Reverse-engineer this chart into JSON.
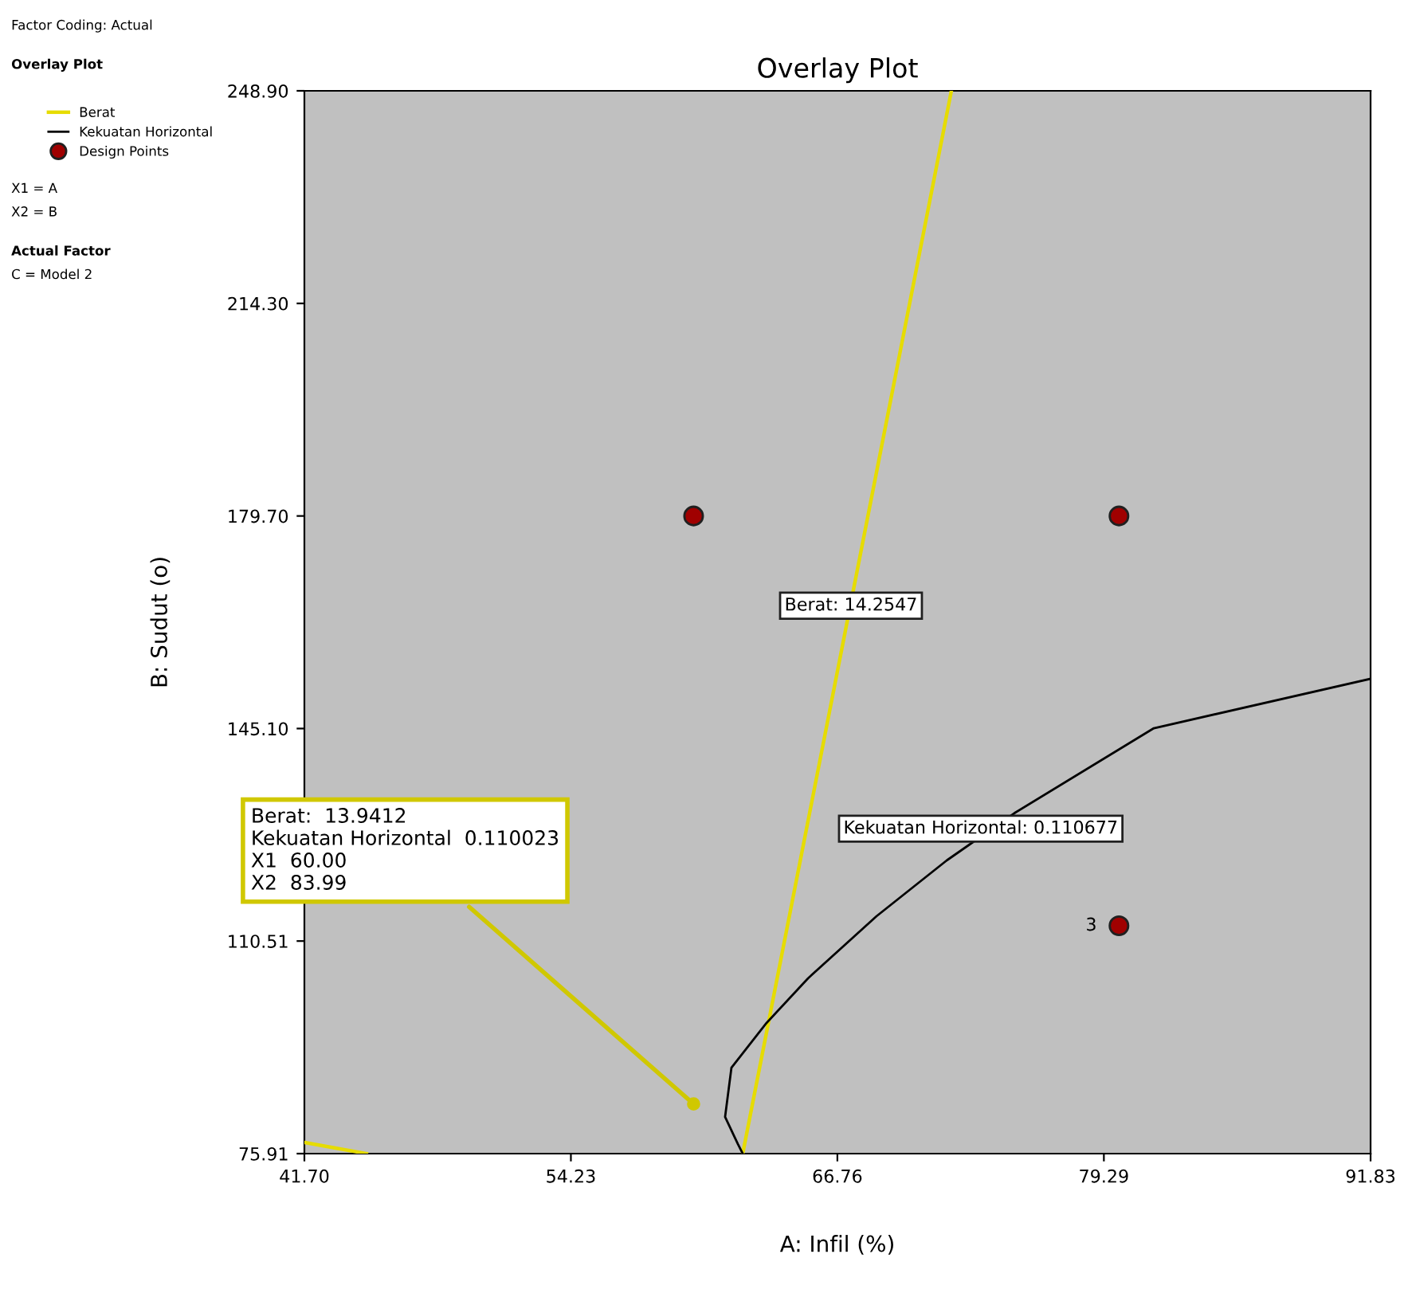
{
  "chart_data": {
    "type": "line",
    "title": "Overlay Plot",
    "xlabel": "A: Infil (%)",
    "ylabel": "B: Sudut (o)",
    "xlim": [
      41.7,
      91.83
    ],
    "ylim": [
      75.91,
      248.9
    ],
    "xticks": [
      {
        "value": 41.7,
        "label": "41.70"
      },
      {
        "value": 54.23,
        "label": "54.23"
      },
      {
        "value": 66.76,
        "label": "66.76"
      },
      {
        "value": 79.29,
        "label": "79.29"
      },
      {
        "value": 91.83,
        "label": "91.83"
      }
    ],
    "yticks": [
      {
        "value": 75.91,
        "label": "75.91"
      },
      {
        "value": 110.51,
        "label": "110.51"
      },
      {
        "value": 145.1,
        "label": "145.10"
      },
      {
        "value": 179.7,
        "label": "179.70"
      },
      {
        "value": 214.3,
        "label": "214.30"
      },
      {
        "value": 248.9,
        "label": "248.90"
      }
    ],
    "grid": false,
    "legend": "left",
    "series": [
      {
        "name": "Berat",
        "color": "#e6dc00",
        "x": [
          62.31,
          72.12
        ],
        "values": [
          75.91,
          248.9
        ]
      },
      {
        "color": "#e6dc00",
        "x": [
          41.7,
          44.62
        ],
        "values": [
          77.73,
          75.91
        ]
      },
      {
        "name": "Kekuatan Horizontal",
        "color": "#000000",
        "x": [
          91.83,
          81.64,
          75.12,
          71.9,
          68.6,
          65.38,
          63.43,
          61.78,
          61.48,
          62.08,
          62.31
        ],
        "values": [
          153.2,
          145.15,
          131.41,
          123.63,
          114.55,
          104.44,
          97.18,
          89.91,
          81.88,
          77.47,
          75.91
        ]
      },
      {
        "name": "Design Points",
        "type": "scatter",
        "marker": "circle",
        "color": "#a00000",
        "x": [
          60.0,
          80.0,
          80.0
        ],
        "values": [
          179.7,
          179.7,
          113.0
        ]
      }
    ],
    "annotations": [
      "Factor Coding: Actual",
      "Overlay Plot",
      "X1 = A",
      "X2 = B",
      "Actual Factor",
      "C = Model 2",
      {
        "text": "Berat: 14.2547",
        "x": 67.4,
        "y": 165.1
      },
      {
        "text": "Kekuatan Horizontal: 0.110677",
        "x": 73.5,
        "y": 128.8
      },
      {
        "text": "3",
        "x": 80.0,
        "y": 113.0
      },
      {
        "text": "Berat:  13.9412\nKekuatan Horizontal  0.110023\nX1  60.00\nX2  83.99",
        "x": 60.0,
        "y": 83.99
      }
    ]
  }
}
